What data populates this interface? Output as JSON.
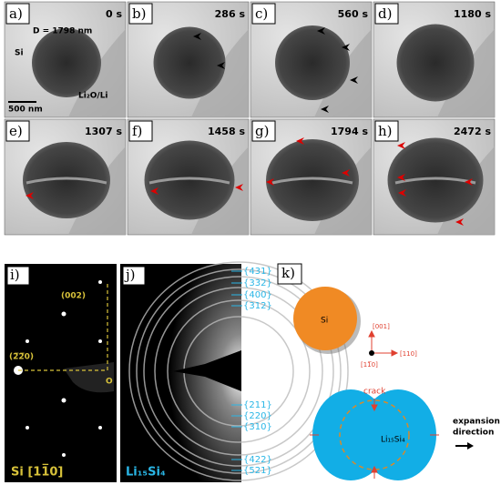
{
  "tem_panels": [
    {
      "label": "a)",
      "time": "0 s"
    },
    {
      "label": "b)",
      "time": "286 s"
    },
    {
      "label": "c)",
      "time": "560 s"
    },
    {
      "label": "d)",
      "time": "1180 s"
    },
    {
      "label": "e)",
      "time": "1307 s"
    },
    {
      "label": "f)",
      "time": "1458 s"
    },
    {
      "label": "g)",
      "time": "1794 s"
    },
    {
      "label": "h)",
      "time": "2472 s"
    }
  ],
  "panel_a": {
    "diameter": "D = 1798 nm",
    "particle": "Si",
    "substrate": "Li₂O/Li",
    "scale_bar": "500 nm"
  },
  "panel_i": {
    "label": "i)",
    "spot_1": "(002)",
    "spot_2": "(2̅2̅0)",
    "origin": "O",
    "zone": "Si [11̅0]"
  },
  "panel_j": {
    "label": "j)",
    "rings_top": [
      "{431}",
      "{332}",
      "{400}",
      "{312}"
    ],
    "rings_bottom": [
      "{211}",
      "{220}",
      "{310}",
      "{422}",
      "{521}"
    ],
    "phase": "Li₁₅Si₄"
  },
  "panel_k": {
    "label": "k)",
    "particle": "Si",
    "axis_up": "[001]",
    "axis_right": "[110]",
    "axis_out": "[11̅0]",
    "crack": "crack",
    "phase": "Li₁₅Si₄",
    "expansion_1": "expansion",
    "expansion_2": "direction"
  }
}
